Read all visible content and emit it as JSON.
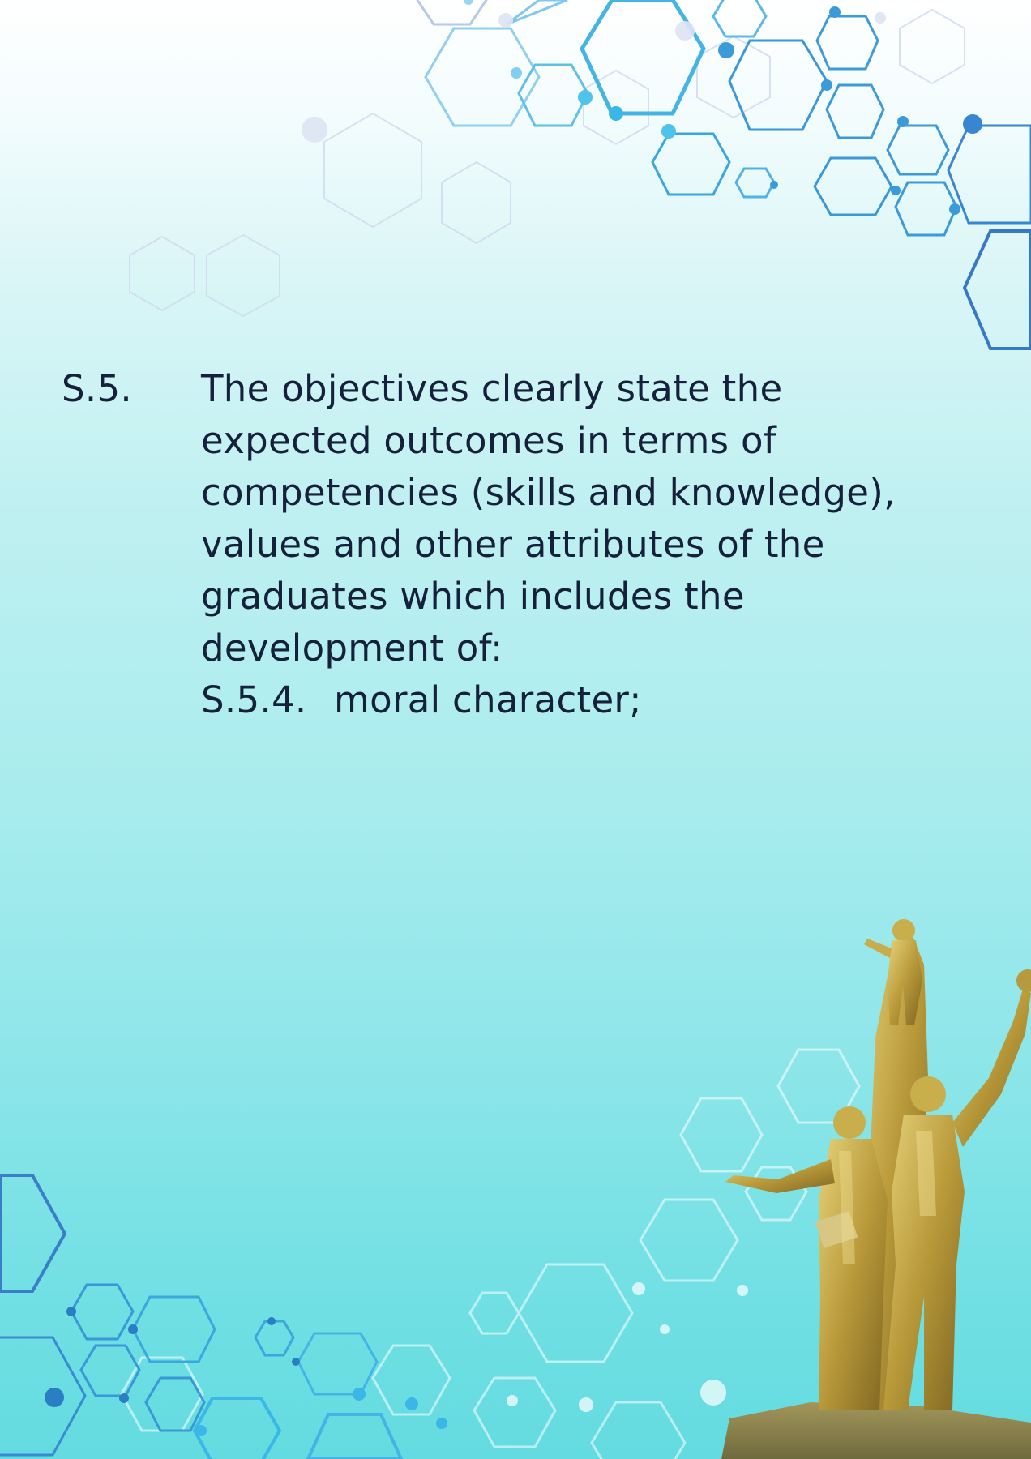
{
  "section": {
    "number": "S.5.",
    "lines": [
      "The objectives clearly state the",
      "expected outcomes in terms of",
      "competencies (skills and knowledge),",
      "values and other attributes of the",
      "graduates which includes the",
      "development of:"
    ],
    "subsection": {
      "number": "S.5.4.",
      "text": "moral character;"
    }
  },
  "colors": {
    "text": "#15203a",
    "hex_blue": "#3a8fd6",
    "hex_cyan": "#4fc3ea",
    "statue_gold": "#b99a3a"
  }
}
